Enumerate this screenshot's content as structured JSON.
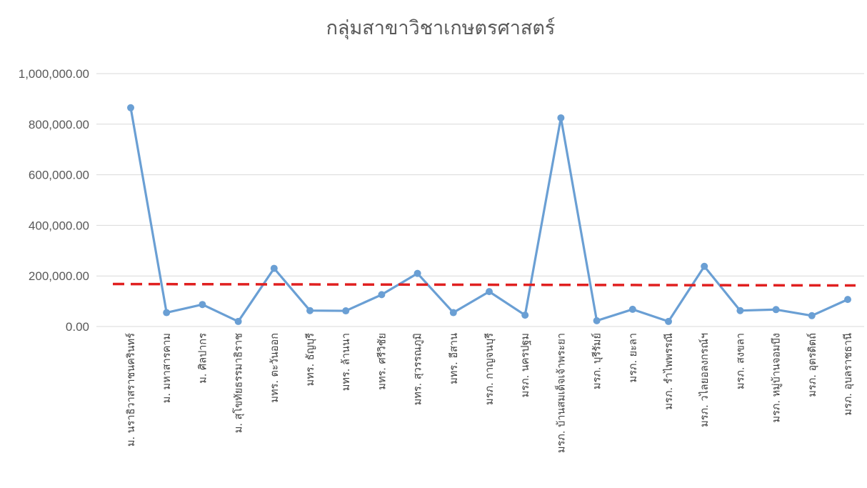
{
  "chart_data": {
    "type": "line",
    "title": "กลุ่มสาขาวิชาเกษตรศาสตร์",
    "xlabel": "",
    "ylabel": "",
    "ylim": [
      0,
      1000000
    ],
    "y_ticks": [
      "0.00",
      "200,000.00",
      "400,000.00",
      "600,000.00",
      "800,000.00",
      "1,000,000.00"
    ],
    "grid": true,
    "legend": "none",
    "categories": [
      "ม. นราธิวาสราชนครินทร์",
      "ม. มหาสารคาม",
      "ม. ศิลปากร",
      "ม. สุโขทัยธรรมาธิราช",
      "มทร. ตะวันออก",
      "มทร. ธัญบุรี",
      "มทร. ล้านนา",
      "มทร. ศรีวิชัย",
      "มทร. สุวรรณภูมิ",
      "มทร. อีสาน",
      "มรภ. กาญจนบุรี",
      "มรภ. นครปฐม",
      "มรภ. บ้านสมเด็จเจ้าพระยา",
      "มรภ. บุรีรัมย์",
      "มรภ. ยะลา",
      "มรภ. รำไพพรรณี",
      "มรภ. วไลยอลงกรณ์ฯ",
      "มรภ. สงขลา",
      "มรภ. หมู่บ้านจอมบึง",
      "มรภ. อุตรดิตถ์",
      "มรภ. อุบลราชธานี"
    ],
    "series": [
      {
        "values": [
          865000,
          55000,
          87000,
          20000,
          230000,
          63000,
          62000,
          126000,
          210000,
          55000,
          138000,
          45000,
          825000,
          23000,
          68000,
          20000,
          238000,
          63000,
          67000,
          43000,
          107000
        ]
      }
    ],
    "reference_line": {
      "value": 168000,
      "style": "dashed"
    },
    "colors": {
      "series": "#6a9fd4",
      "reference": "#e02020",
      "grid": "#d9d9d9",
      "text": "#595959"
    }
  }
}
